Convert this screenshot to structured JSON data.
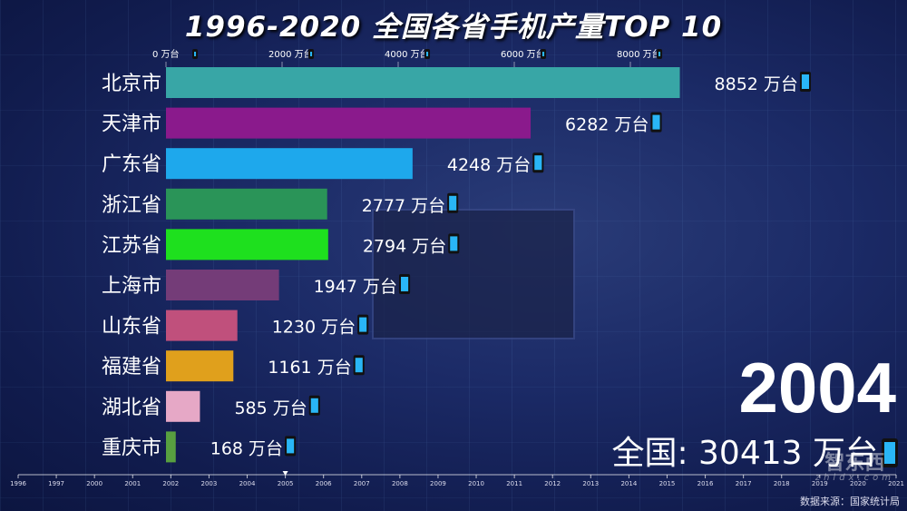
{
  "chart_data": {
    "type": "bar",
    "orientation": "horizontal",
    "title": "1996-2020 全国各省手机产量TOP 10",
    "unit": "万台",
    "categories": [
      "北京市",
      "天津市",
      "广东省",
      "浙江省",
      "江苏省",
      "上海市",
      "山东省",
      "福建省",
      "湖北省",
      "重庆市"
    ],
    "values": [
      8852,
      6282,
      4248,
      2777,
      2794,
      1947,
      1230,
      1161,
      585,
      168
    ],
    "colors": [
      "#38a6a6",
      "#8a1a8c",
      "#1ea8ec",
      "#2a9458",
      "#1ee01e",
      "#743c78",
      "#c0507c",
      "#e0a01c",
      "#e6a8c6",
      "#58a040"
    ],
    "xlim": [
      0,
      9500
    ],
    "x_ticks": [
      0,
      2000,
      4000,
      6000,
      8000
    ],
    "x_tick_labels": [
      "0 万台",
      "2000 万台",
      "4000 万台",
      "6000 万台",
      "8000 万台"
    ],
    "value_labels": [
      "8852 万台",
      "6282 万台",
      "4248 万台",
      "2777 万台",
      "2794 万台",
      "1947 万台",
      "1230 万台",
      "1161 万台",
      "585 万台",
      "168 万台"
    ],
    "grid": false,
    "current_year": "2004",
    "total_label": "全国: 30413 万台",
    "timeline": {
      "years": [
        "1996",
        "1997",
        "2000",
        "2001",
        "2002",
        "2003",
        "2004",
        "2005",
        "2006",
        "2007",
        "2008",
        "2009",
        "2010",
        "2011",
        "2012",
        "2013",
        "2014",
        "2015",
        "2016",
        "2017",
        "2018",
        "2019",
        "2020",
        "2021"
      ],
      "position_index": 7
    },
    "icon": "mobile-phone-icon"
  },
  "source": "数据来源：国家统计局",
  "logo": {
    "name": "智东西",
    "url_text": "zhidx.com"
  }
}
